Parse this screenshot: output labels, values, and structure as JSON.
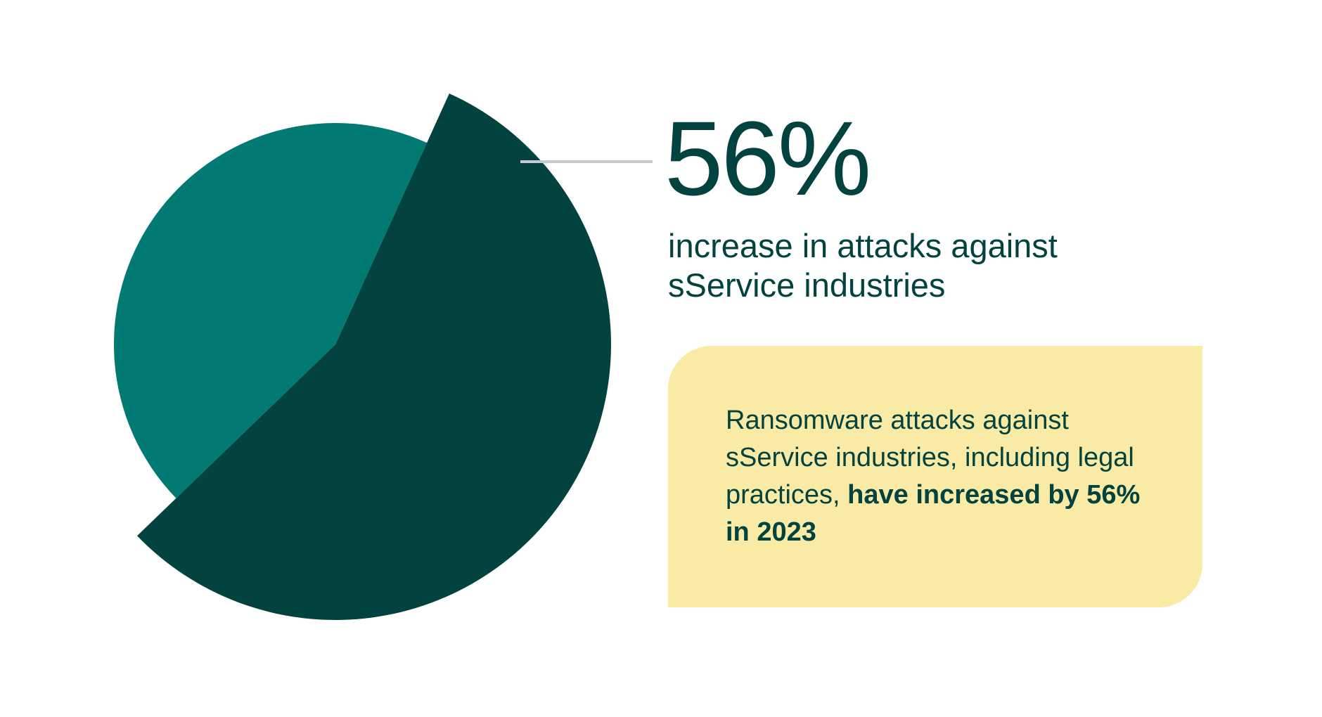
{
  "colors": {
    "background": "#ffffff",
    "teal": "#027a74",
    "dark_teal": "#02423f",
    "callout_bg": "#f9eba5",
    "leader": "#c7cbd1"
  },
  "headline": {
    "value": "56%",
    "caption": "increase in attacks against sService industries"
  },
  "callout": {
    "text_regular": "Ransomware attacks against sService industries, including legal practices, ",
    "text_bold": "have increased by 56% in 2023"
  },
  "chart_data": {
    "type": "pie",
    "title": "",
    "slices": [
      {
        "label": "",
        "value": 56,
        "color": "#02423f",
        "exploded": true
      },
      {
        "label": "",
        "value": 44,
        "color": "#027a74",
        "exploded": false
      }
    ],
    "annotation": "56%",
    "legend": "none"
  }
}
